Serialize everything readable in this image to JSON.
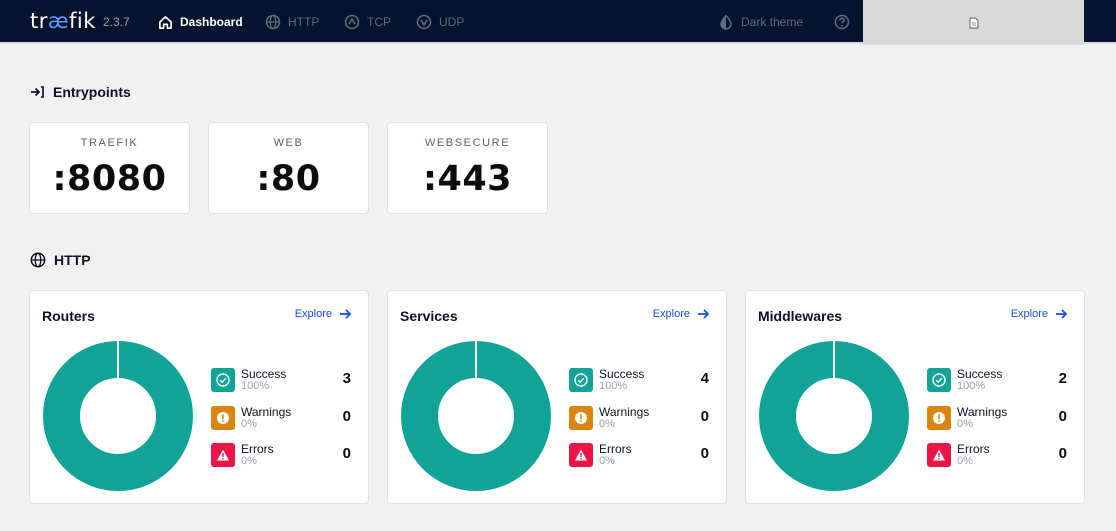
{
  "app": {
    "logo_prefix": "tr",
    "logo_ae": "æ",
    "logo_suffix": "fik",
    "version": "2.3.7"
  },
  "nav": [
    {
      "label": "Dashboard",
      "icon": "home-icon",
      "active": true
    },
    {
      "label": "HTTP",
      "icon": "globe-icon",
      "active": false
    },
    {
      "label": "TCP",
      "icon": "tcp-icon",
      "active": false
    },
    {
      "label": "UDP",
      "icon": "udp-icon",
      "active": false
    }
  ],
  "theme_toggle": {
    "label": "Dark theme",
    "icon": "theme-drop-icon"
  },
  "help": {
    "icon": "help-icon"
  },
  "entrypoints": {
    "title": "Entrypoints",
    "items": [
      {
        "name": "TRAEFIK",
        "port": ":8080"
      },
      {
        "name": "WEB",
        "port": ":80"
      },
      {
        "name": "WEBSECURE",
        "port": ":443"
      }
    ]
  },
  "http": {
    "title": "HTTP",
    "explore_label": "Explore",
    "cards": [
      {
        "title": "Routers",
        "success": {
          "label": "Success",
          "pct": "100%",
          "count": "3"
        },
        "warnings": {
          "label": "Warnings",
          "pct": "0%",
          "count": "0"
        },
        "errors": {
          "label": "Errors",
          "pct": "0%",
          "count": "0"
        }
      },
      {
        "title": "Services",
        "success": {
          "label": "Success",
          "pct": "100%",
          "count": "4"
        },
        "warnings": {
          "label": "Warnings",
          "pct": "0%",
          "count": "0"
        },
        "errors": {
          "label": "Errors",
          "pct": "0%",
          "count": "0"
        }
      },
      {
        "title": "Middlewares",
        "success": {
          "label": "Success",
          "pct": "100%",
          "count": "2"
        },
        "warnings": {
          "label": "Warnings",
          "pct": "0%",
          "count": "0"
        },
        "errors": {
          "label": "Errors",
          "pct": "0%",
          "count": "0"
        }
      }
    ]
  },
  "colors": {
    "topbar": "#04142e",
    "success": "#11a395",
    "warning": "#db8511",
    "error": "#eb1447",
    "link": "#1b4fd9"
  }
}
